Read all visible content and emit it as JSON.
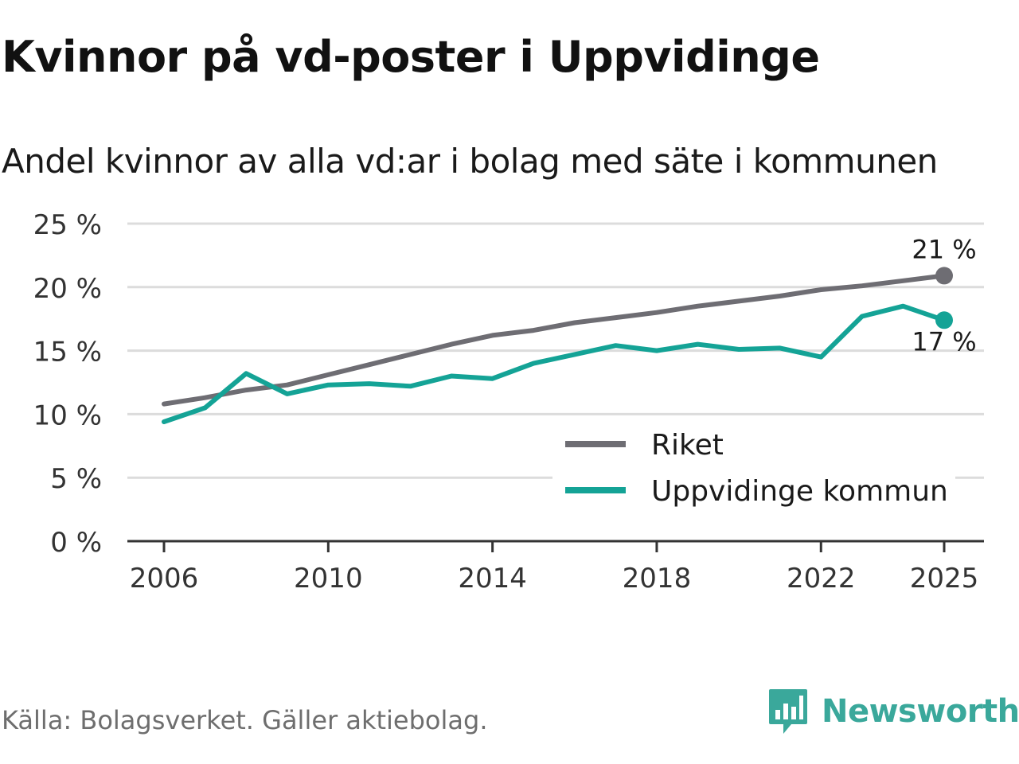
{
  "title": "Kvinnor på vd-poster i Uppvidinge",
  "subtitle": "Andel kvinnor av alla vd:ar i bolag med säte i kommunen",
  "source": "Källa: Bolagsverket. Gäller aktiebolag.",
  "brand": {
    "name": "Newsworthy",
    "color": "#3aa89b"
  },
  "chart_data": {
    "type": "line",
    "title": "Kvinnor på vd-poster i Uppvidinge",
    "subtitle": "Andel kvinnor av alla vd:ar i bolag med säte i kommunen",
    "xlabel": "",
    "ylabel": "",
    "xlim": [
      2006,
      2025
    ],
    "ylim": [
      0,
      25
    ],
    "yticks": [
      0,
      5,
      10,
      15,
      20,
      25
    ],
    "ytick_labels": [
      "0 %",
      "5 %",
      "10 %",
      "15 %",
      "20 %",
      "25 %"
    ],
    "xticks": [
      2006,
      2010,
      2014,
      2018,
      2022,
      2025
    ],
    "xtick_labels": [
      "2006",
      "2010",
      "2014",
      "2018",
      "2022",
      "2025"
    ],
    "grid": true,
    "legend_position": "bottom-right",
    "x": [
      2006,
      2007,
      2008,
      2009,
      2010,
      2011,
      2012,
      2013,
      2014,
      2015,
      2016,
      2017,
      2018,
      2019,
      2020,
      2021,
      2022,
      2023,
      2024,
      2025
    ],
    "series": [
      {
        "name": "Riket",
        "color": "#6e6d73",
        "values": [
          10.8,
          11.3,
          11.9,
          12.3,
          13.1,
          13.9,
          14.7,
          15.5,
          16.2,
          16.6,
          17.2,
          17.6,
          18.0,
          18.5,
          18.9,
          19.3,
          19.8,
          20.1,
          20.5,
          20.9
        ],
        "end_label": "21 %"
      },
      {
        "name": "Uppvidinge kommun",
        "color": "#14a396",
        "values": [
          9.4,
          10.5,
          13.2,
          11.6,
          12.3,
          12.4,
          12.2,
          13.0,
          12.8,
          14.0,
          14.7,
          15.4,
          15.0,
          15.5,
          15.1,
          15.2,
          14.5,
          17.7,
          18.5,
          17.4
        ],
        "end_label": "17 %"
      }
    ]
  }
}
